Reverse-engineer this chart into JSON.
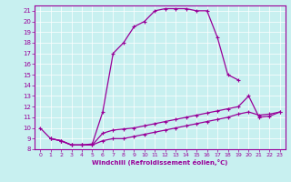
{
  "xlabel": "Windchill (Refroidissement éolien,°C)",
  "bg_color": "#c8f0f0",
  "line_color": "#990099",
  "xlim": [
    -0.5,
    23.5
  ],
  "ylim": [
    8,
    21.5
  ],
  "xticks": [
    0,
    1,
    2,
    3,
    4,
    5,
    6,
    7,
    8,
    9,
    10,
    11,
    12,
    13,
    14,
    15,
    16,
    17,
    18,
    19,
    20,
    21,
    22,
    23
  ],
  "yticks": [
    8,
    9,
    10,
    11,
    12,
    13,
    14,
    15,
    16,
    17,
    18,
    19,
    20,
    21
  ],
  "curve1_x": [
    0,
    1,
    2,
    3,
    4,
    5,
    6,
    7,
    8,
    9,
    10,
    11,
    12,
    13,
    14,
    15,
    16,
    17,
    18,
    19
  ],
  "curve1_y": [
    10,
    9,
    8.8,
    8.4,
    8.4,
    8.5,
    11.5,
    17.0,
    18.0,
    19.5,
    20.0,
    21.0,
    21.2,
    21.2,
    21.2,
    21.0,
    21.0,
    18.5,
    15.0,
    14.5
  ],
  "curve2_x": [
    1,
    2,
    3,
    4,
    5,
    6,
    7,
    8,
    9,
    10,
    11,
    12,
    13,
    14,
    15,
    16,
    17,
    18,
    19,
    20,
    21,
    22,
    23
  ],
  "curve2_y": [
    9.0,
    8.8,
    8.4,
    8.4,
    8.4,
    9.5,
    9.8,
    9.9,
    10.0,
    10.2,
    10.4,
    10.6,
    10.8,
    11.0,
    11.2,
    11.4,
    11.6,
    11.8,
    12.0,
    13.0,
    11.0,
    11.1,
    11.5
  ],
  "curve3_x": [
    1,
    2,
    3,
    4,
    5,
    6,
    7,
    8,
    9,
    10,
    11,
    12,
    13,
    14,
    15,
    16,
    17,
    18,
    19,
    20,
    21,
    22,
    23
  ],
  "curve3_y": [
    9.0,
    8.8,
    8.4,
    8.4,
    8.4,
    8.8,
    9.0,
    9.0,
    9.2,
    9.4,
    9.6,
    9.8,
    10.0,
    10.2,
    10.4,
    10.6,
    10.8,
    11.0,
    11.3,
    11.5,
    11.2,
    11.3,
    11.5
  ]
}
